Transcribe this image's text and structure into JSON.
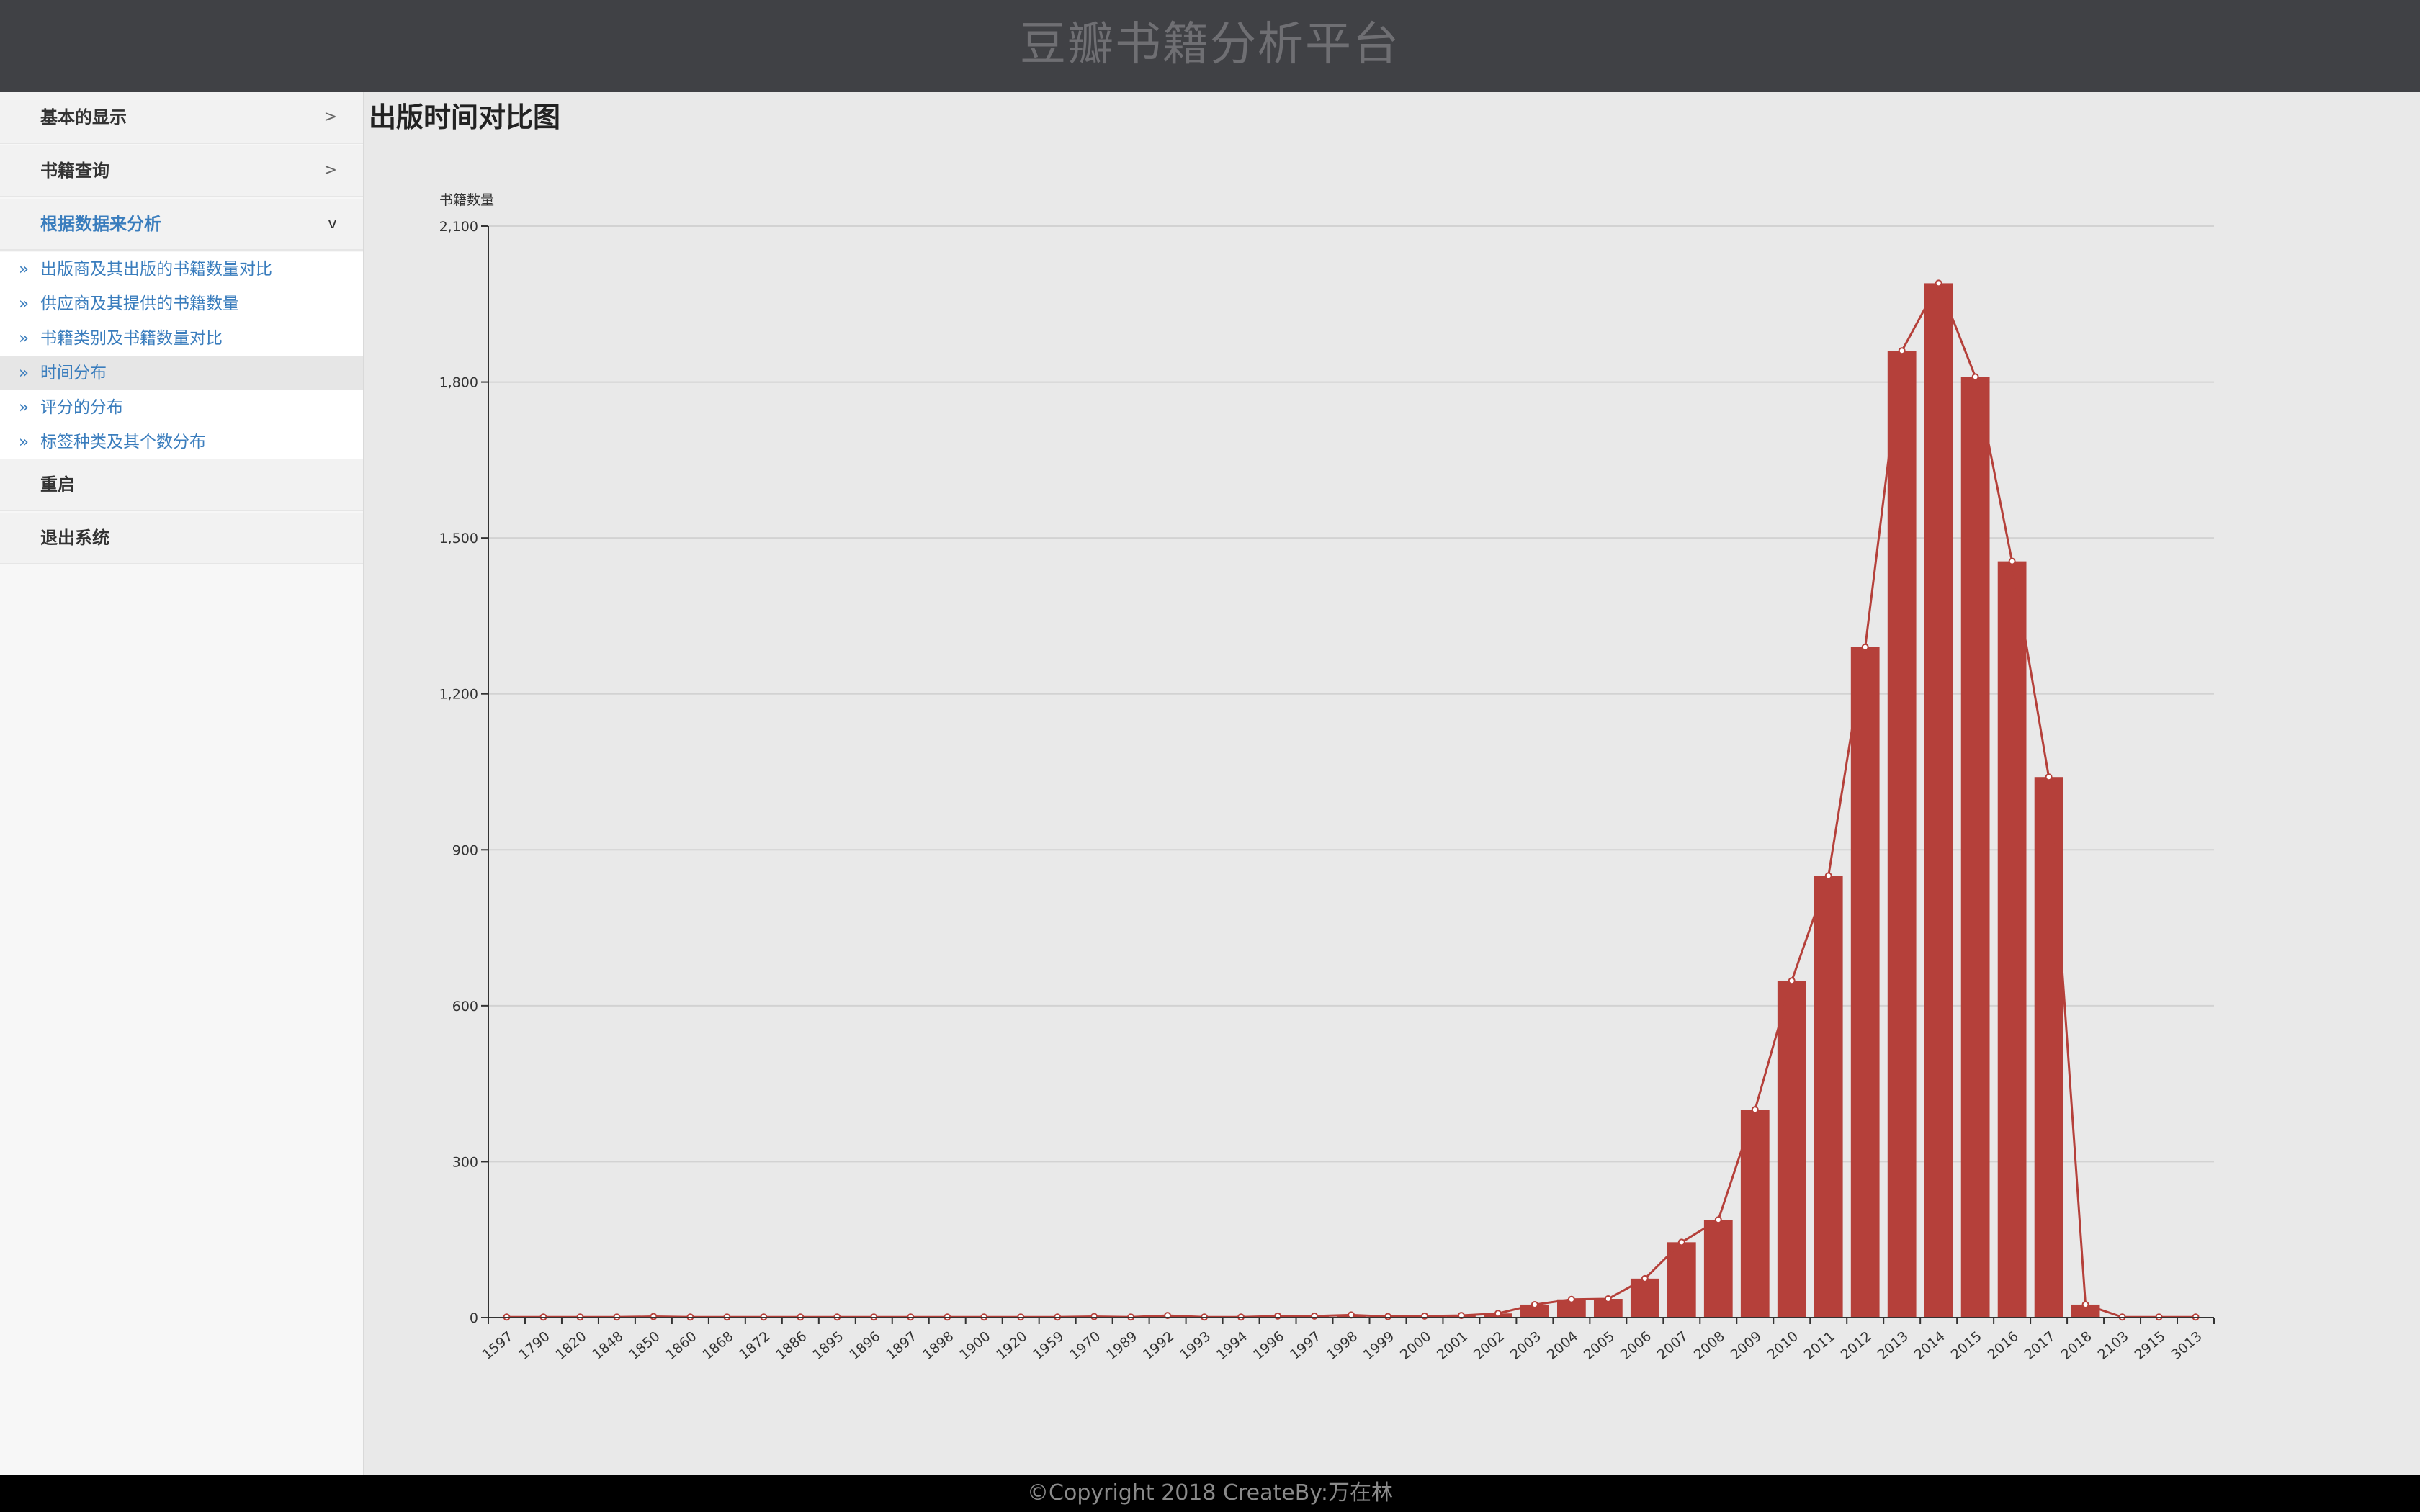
{
  "header": {
    "title": "豆瓣书籍分析平台"
  },
  "sidebar": {
    "menus": [
      {
        "label": "基本的显示",
        "arrow": ">"
      },
      {
        "label": "书籍查询",
        "arrow": ">"
      },
      {
        "label": "根据数据来分析",
        "arrow": "v",
        "items": [
          {
            "label": "出版商及其出版的书籍数量对比"
          },
          {
            "label": "供应商及其提供的书籍数量"
          },
          {
            "label": "书籍类别及书籍数量对比"
          },
          {
            "label": "时间分布"
          },
          {
            "label": "评分的分布"
          },
          {
            "label": "标签种类及其个数分布"
          }
        ]
      },
      {
        "label": "重启"
      },
      {
        "label": "退出系统"
      }
    ],
    "bullet": "»"
  },
  "main": {
    "page_title": "出版时间对比图"
  },
  "footer": {
    "copyright": "©Copyright 2018 CreateBy:万在林"
  },
  "colors": {
    "bar": "#b5403a",
    "line": "#b5403a",
    "accent": "#3a7dbd"
  },
  "chart_data": {
    "type": "bar",
    "categories": [
      "1597",
      "1790",
      "1820",
      "1848",
      "1850",
      "1860",
      "1868",
      "1872",
      "1886",
      "1895",
      "1896",
      "1897",
      "1898",
      "1900",
      "1920",
      "1959",
      "1970",
      "1989",
      "1992",
      "1993",
      "1994",
      "1996",
      "1997",
      "1998",
      "1999",
      "2000",
      "2001",
      "2002",
      "2003",
      "2004",
      "2005",
      "2006",
      "2007",
      "2008",
      "2009",
      "2010",
      "2011",
      "2012",
      "2013",
      "2014",
      "2015",
      "2016",
      "2017",
      "2018",
      "2103",
      "2915",
      "3013"
    ],
    "values": [
      1,
      1,
      1,
      1,
      2,
      1,
      1,
      1,
      1,
      1,
      1,
      1,
      1,
      1,
      1,
      1,
      2,
      1,
      4,
      1,
      1,
      3,
      3,
      5,
      2,
      3,
      4,
      8,
      25,
      35,
      36,
      75,
      145,
      188,
      400,
      648,
      850,
      1290,
      1860,
      1990,
      1810,
      1455,
      1040,
      25,
      1,
      1,
      1
    ],
    "ylabel": "书籍数量",
    "ylim": [
      0,
      2100
    ],
    "yticks": [
      0,
      300,
      600,
      900,
      1200,
      1500,
      1800,
      2100
    ],
    "ytick_labels": [
      "0",
      "300",
      "600",
      "900",
      "1,200",
      "1,500",
      "1,800",
      "2,100"
    ],
    "overlay_line": true,
    "grid": true
  }
}
